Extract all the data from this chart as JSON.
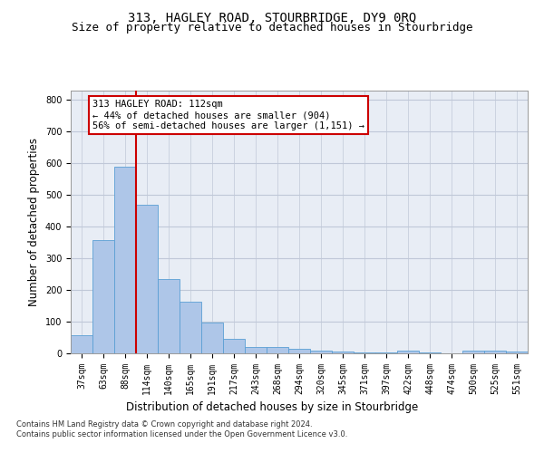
{
  "title": "313, HAGLEY ROAD, STOURBRIDGE, DY9 0RQ",
  "subtitle": "Size of property relative to detached houses in Stourbridge",
  "xlabel": "Distribution of detached houses by size in Stourbridge",
  "ylabel": "Number of detached properties",
  "categories": [
    "37sqm",
    "63sqm",
    "88sqm",
    "114sqm",
    "140sqm",
    "165sqm",
    "191sqm",
    "217sqm",
    "243sqm",
    "268sqm",
    "294sqm",
    "320sqm",
    "345sqm",
    "371sqm",
    "397sqm",
    "422sqm",
    "448sqm",
    "474sqm",
    "500sqm",
    "525sqm",
    "551sqm"
  ],
  "values": [
    57,
    357,
    590,
    470,
    235,
    163,
    97,
    46,
    20,
    19,
    15,
    8,
    5,
    4,
    3,
    8,
    2,
    1,
    10,
    9,
    6
  ],
  "bar_color": "#aec6e8",
  "bar_edge_color": "#5a9fd4",
  "vline_x_index": 2.5,
  "vline_color": "#cc0000",
  "annotation_text": "313 HAGLEY ROAD: 112sqm\n← 44% of detached houses are smaller (904)\n56% of semi-detached houses are larger (1,151) →",
  "annotation_box_color": "#cc0000",
  "annotation_fill": "#ffffff",
  "ylim": [
    0,
    830
  ],
  "yticks": [
    0,
    100,
    200,
    300,
    400,
    500,
    600,
    700,
    800
  ],
  "grid_color": "#c0c8d8",
  "bg_color": "#e8edf5",
  "footer_line1": "Contains HM Land Registry data © Crown copyright and database right 2024.",
  "footer_line2": "Contains public sector information licensed under the Open Government Licence v3.0.",
  "title_fontsize": 10,
  "subtitle_fontsize": 9,
  "tick_fontsize": 7,
  "ylabel_fontsize": 8.5,
  "xlabel_fontsize": 8.5,
  "annotation_fontsize": 7.5
}
